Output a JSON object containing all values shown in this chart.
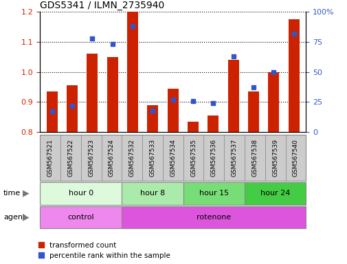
{
  "title": "GDS5341 / ILMN_2735940",
  "samples": [
    "GSM567521",
    "GSM567522",
    "GSM567523",
    "GSM567524",
    "GSM567532",
    "GSM567533",
    "GSM567534",
    "GSM567535",
    "GSM567536",
    "GSM567537",
    "GSM567538",
    "GSM567539",
    "GSM567540"
  ],
  "transformed_count": [
    0.935,
    0.955,
    1.06,
    1.05,
    1.2,
    0.89,
    0.945,
    0.835,
    0.855,
    1.04,
    0.935,
    1.0,
    1.175
  ],
  "percentile_rank": [
    17,
    22,
    78,
    73,
    88,
    18,
    27,
    26,
    24,
    63,
    37,
    50,
    82
  ],
  "ylim_left": [
    0.8,
    1.2
  ],
  "ylim_right": [
    0,
    100
  ],
  "yticks_left": [
    0.8,
    0.9,
    1.0,
    1.1,
    1.2
  ],
  "yticks_right": [
    0,
    25,
    50,
    75,
    100
  ],
  "ytick_labels_right": [
    "0",
    "25",
    "50",
    "75",
    "100%"
  ],
  "bar_color": "#cc2200",
  "dot_color": "#3355cc",
  "bar_bottom": 0.8,
  "time_groups": [
    {
      "label": "hour 0",
      "start": 0,
      "end": 4,
      "color": "#ddfadd"
    },
    {
      "label": "hour 8",
      "start": 4,
      "end": 7,
      "color": "#aaeaaa"
    },
    {
      "label": "hour 15",
      "start": 7,
      "end": 10,
      "color": "#77dd77"
    },
    {
      "label": "hour 24",
      "start": 10,
      "end": 13,
      "color": "#44cc44"
    }
  ],
  "agent_groups": [
    {
      "label": "control",
      "start": 0,
      "end": 4,
      "color": "#ee88ee"
    },
    {
      "label": "rotenone",
      "start": 4,
      "end": 13,
      "color": "#dd55dd"
    }
  ],
  "time_label": "time",
  "agent_label": "agent",
  "legend_items": [
    {
      "color": "#cc2200",
      "label": "transformed count"
    },
    {
      "color": "#3355cc",
      "label": "percentile rank within the sample"
    }
  ],
  "ylabel_left_color": "#cc2200",
  "ylabel_right_color": "#3355cc",
  "tick_label_bg": "#cccccc",
  "row_border_color": "#888888"
}
